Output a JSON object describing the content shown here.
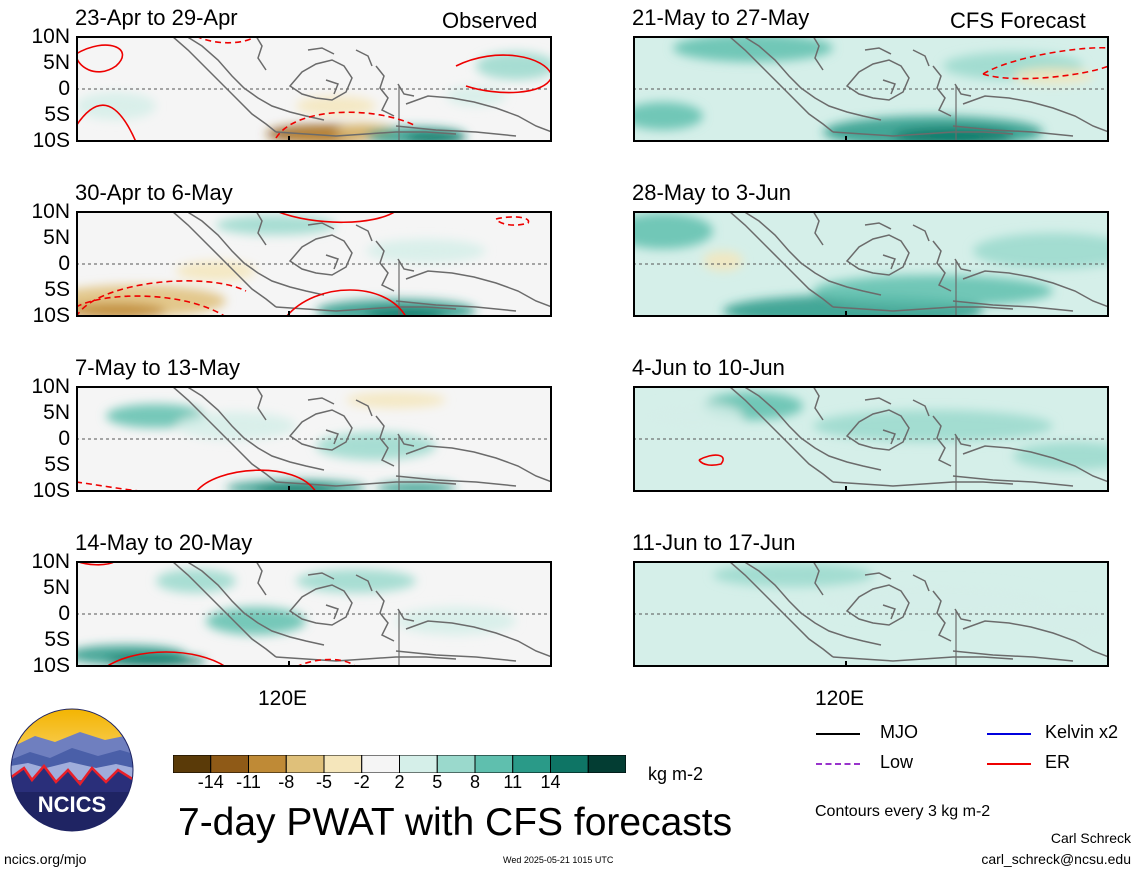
{
  "panels_left": [
    {
      "title": "23-Apr to 29-Apr",
      "tag": "Observed"
    },
    {
      "title": "30-Apr to 6-May",
      "tag": ""
    },
    {
      "title": "7-May to 13-May",
      "tag": ""
    },
    {
      "title": "14-May to 20-May",
      "tag": ""
    }
  ],
  "panels_right": [
    {
      "title": "21-May to 27-May",
      "tag": "CFS Forecast"
    },
    {
      "title": "28-May to 3-Jun",
      "tag": ""
    },
    {
      "title": "4-Jun to 10-Jun",
      "tag": ""
    },
    {
      "title": "11-Jun to 17-Jun",
      "tag": ""
    }
  ],
  "lat_labels": [
    "10N",
    "5N",
    "0",
    "5S",
    "10S"
  ],
  "lon_label": "120E",
  "colorbar": {
    "colors": [
      "#5a3a08",
      "#8f5a17",
      "#bf8a36",
      "#dfc07a",
      "#f5e6bb",
      "#f5f5f5",
      "#d5efe9",
      "#9ad9cc",
      "#5fbfae",
      "#2a9a88",
      "#0e7565",
      "#033d33"
    ],
    "ticks": [
      "-14",
      "-11",
      "-8",
      "-5",
      "-2",
      "2",
      "5",
      "8",
      "11",
      "14"
    ],
    "units": "kg m-2"
  },
  "legend": {
    "mjo": {
      "label": "MJO",
      "color": "#000000"
    },
    "kelvin": {
      "label": "Kelvin x2",
      "color": "#0000dd"
    },
    "low": {
      "label": "Low",
      "color": "#9933cc"
    },
    "er": {
      "label": "ER",
      "color": "#ee0000"
    },
    "contours_note": "Contours every 3 kg m-2"
  },
  "main_title": "7-day PWAT with CFS forecasts",
  "logo_text": "NCICS",
  "footer": {
    "url": "ncics.org/mjo",
    "timestamp": "Wed 2025-05-21 1015 UTC",
    "author": "Carl Schreck",
    "email": "carl_schreck@ncsu.edu"
  }
}
